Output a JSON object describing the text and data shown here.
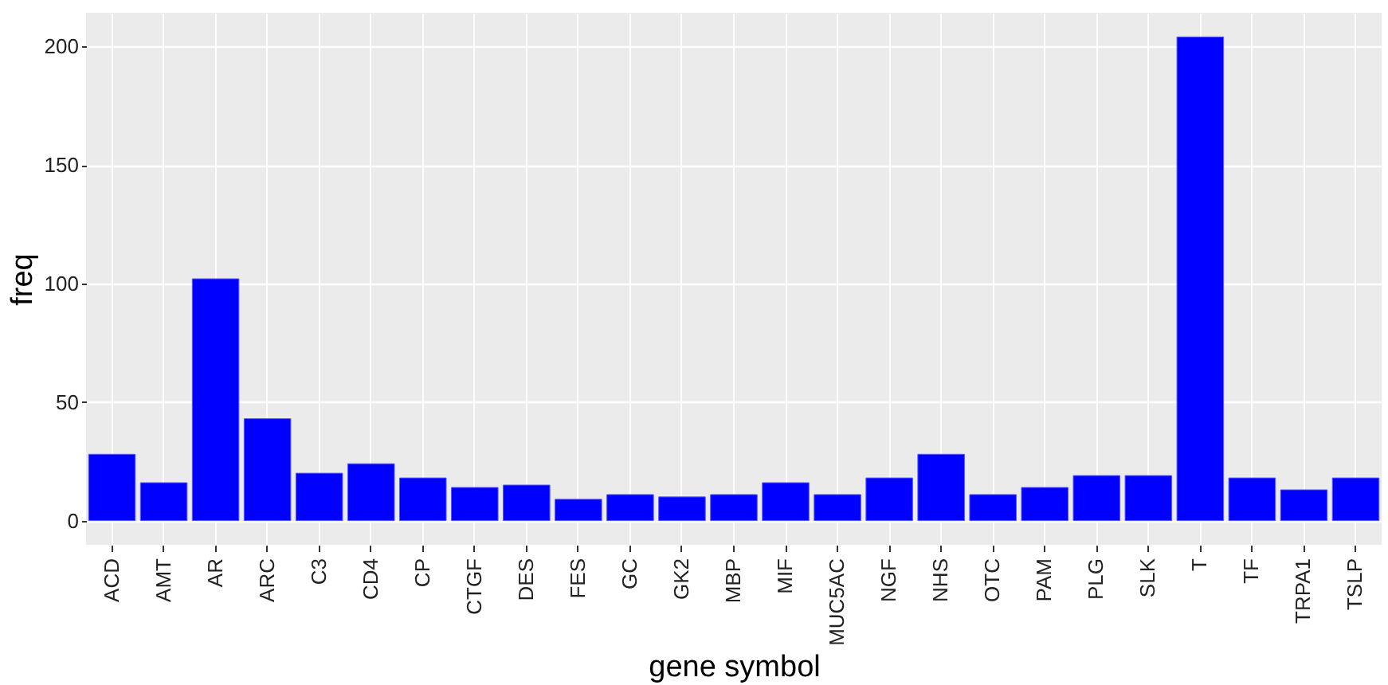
{
  "chart_data": {
    "type": "bar",
    "xlabel": "gene symbol",
    "ylabel": "freq",
    "categories": [
      "ACD",
      "AMT",
      "AR",
      "ARC",
      "C3",
      "CD4",
      "CP",
      "CTGF",
      "DES",
      "FES",
      "GC",
      "GK2",
      "MBP",
      "MIF",
      "MUC5AC",
      "NGF",
      "NHS",
      "OTC",
      "PAM",
      "PLG",
      "SLK",
      "T",
      "TF",
      "TRPA1",
      "TSLP"
    ],
    "values": [
      28,
      16,
      102,
      43,
      20,
      24,
      18,
      14,
      15,
      9,
      11,
      10,
      11,
      16,
      11,
      18,
      28,
      11,
      14,
      19,
      19,
      204,
      18,
      13,
      18
    ],
    "color": "#0000ff",
    "ylim": [
      -10.2,
      214.2
    ],
    "yticks": [
      0,
      50,
      100,
      150,
      200
    ],
    "grid": true
  }
}
